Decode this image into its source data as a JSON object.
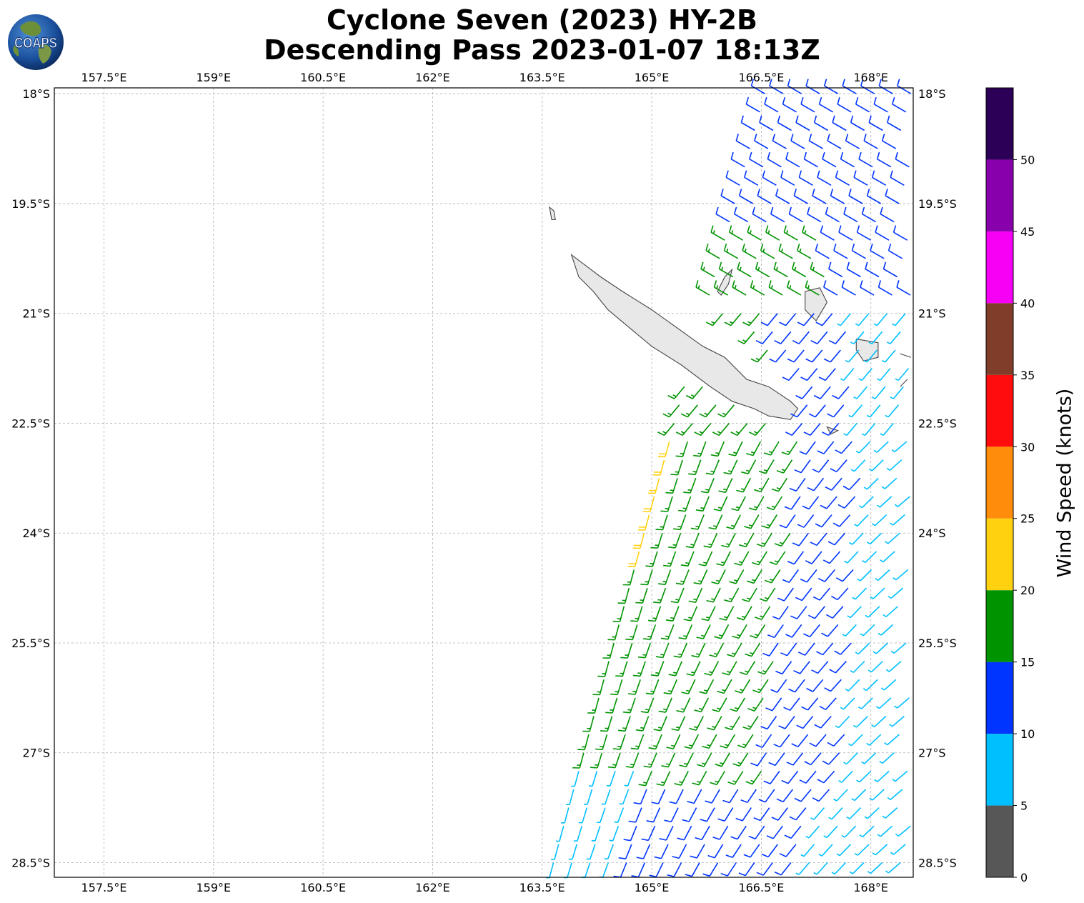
{
  "title_line1": "Cyclone Seven (2023) HY-2B",
  "title_line2": "Descending Pass 2023-01-07 18:13Z",
  "logo_text": "COAPS",
  "map": {
    "lon_ticks": [
      "157.5°E",
      "159°E",
      "160.5°E",
      "162°E",
      "163.5°E",
      "165°E",
      "166.5°E",
      "168°E"
    ],
    "lon_values": [
      157.5,
      159,
      160.5,
      162,
      163.5,
      165,
      166.5,
      168
    ],
    "lat_ticks": [
      "18°S",
      "19.5°S",
      "21°S",
      "22.5°S",
      "24°S",
      "25.5°S",
      "27°S",
      "28.5°S"
    ],
    "lat_values": [
      -18,
      -19.5,
      -21,
      -22.5,
      -24,
      -25.5,
      -27,
      -28.5
    ],
    "extent": {
      "lon_min": 156.82,
      "lon_max": 168.58,
      "lat_min": -28.7,
      "lat_max": -17.92
    },
    "gridlines": true
  },
  "colorbar": {
    "label": "Wind Speed (knots)",
    "tick_labels": [
      "0",
      "5",
      "10",
      "15",
      "20",
      "25",
      "30",
      "35",
      "40",
      "45",
      "50"
    ],
    "bins": [
      {
        "min": 0,
        "max": 5,
        "color": "#575757"
      },
      {
        "min": 5,
        "max": 10,
        "color": "#00bfff"
      },
      {
        "min": 10,
        "max": 15,
        "color": "#0034ff"
      },
      {
        "min": 15,
        "max": 20,
        "color": "#009300"
      },
      {
        "min": 20,
        "max": 25,
        "color": "#ffd10f"
      },
      {
        "min": 25,
        "max": 30,
        "color": "#ff8c0a"
      },
      {
        "min": 30,
        "max": 35,
        "color": "#ff0d0d"
      },
      {
        "min": 35,
        "max": 40,
        "color": "#7f3d2a"
      },
      {
        "min": 40,
        "max": 45,
        "color": "#f500f5"
      },
      {
        "min": 45,
        "max": 50,
        "color": "#8700ab"
      },
      {
        "min": 50,
        "max": 55,
        "color": "#2d0057"
      }
    ]
  }
}
